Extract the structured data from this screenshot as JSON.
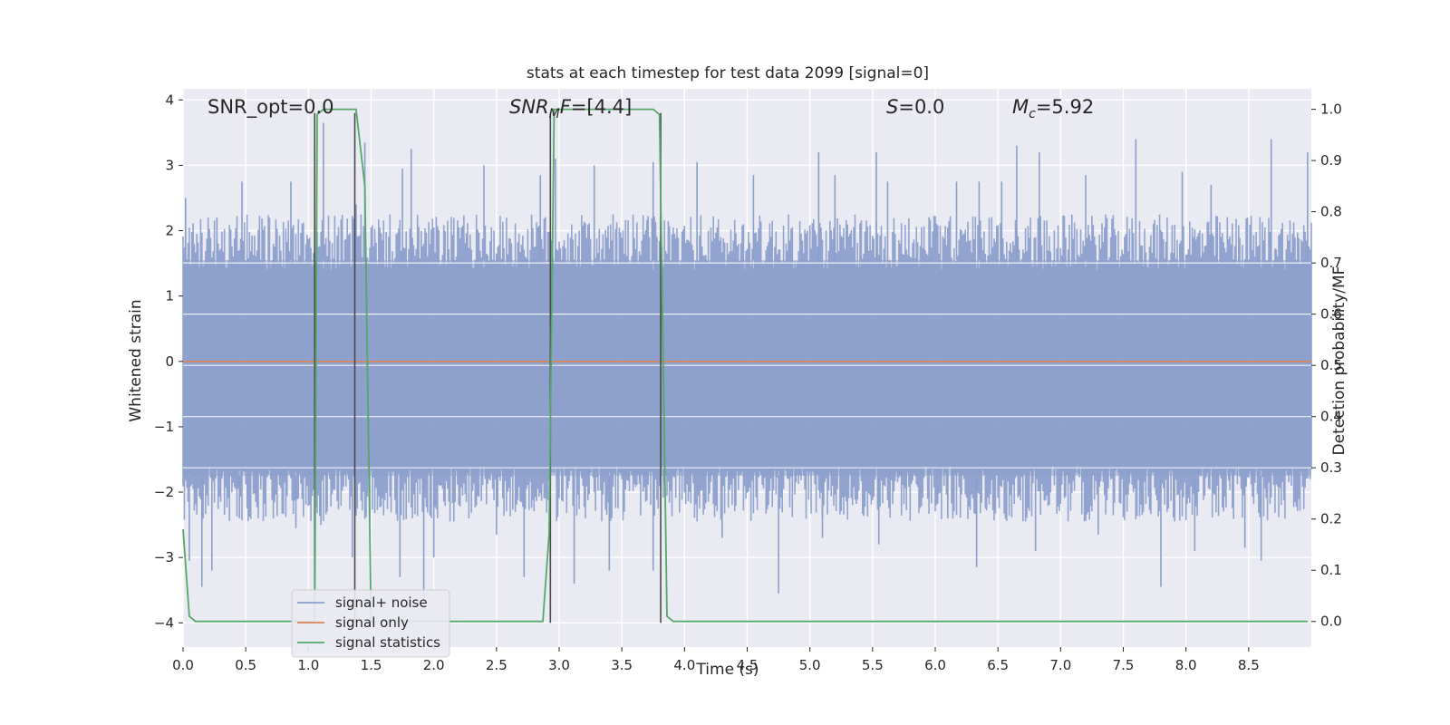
{
  "chart_data": {
    "type": "line",
    "title": "stats at each timestep for test data 2099 [signal=0]",
    "xlabel": "Time (s)",
    "ylabel_left": "Whitened strain",
    "ylabel_right": "Detection probability/MF",
    "xlim": [
      0.0,
      9.0
    ],
    "ylim_left": [
      -4.37,
      4.17
    ],
    "ylim_right": [
      -0.05,
      1.04
    ],
    "x_ticks": [
      "0.0",
      "0.5",
      "1.0",
      "1.5",
      "2.0",
      "2.5",
      "3.0",
      "3.5",
      "4.0",
      "4.5",
      "5.0",
      "5.5",
      "6.0",
      "6.5",
      "7.0",
      "7.5",
      "8.0",
      "8.5"
    ],
    "x_tick_values": [
      0.0,
      0.5,
      1.0,
      1.5,
      2.0,
      2.5,
      3.0,
      3.5,
      4.0,
      4.5,
      5.0,
      5.5,
      6.0,
      6.5,
      7.0,
      7.5,
      8.0,
      8.5
    ],
    "y_left_ticks": [
      "4",
      "3",
      "2",
      "1",
      "0",
      "−1",
      "−2",
      "−3",
      "−4"
    ],
    "y_left_tick_values": [
      4,
      3,
      2,
      1,
      0,
      -1,
      -2,
      -3,
      -4
    ],
    "y_right_ticks": [
      "1.0",
      "0.9",
      "0.8",
      "0.7",
      "0.6",
      "0.5",
      "0.4",
      "0.3",
      "0.2",
      "0.1",
      "0.0"
    ],
    "y_right_tick_values": [
      1.0,
      0.9,
      0.8,
      0.7,
      0.6,
      0.5,
      0.4,
      0.3,
      0.2,
      0.1,
      0.0
    ],
    "grid": true,
    "legend_position": "lower-left",
    "colors": {
      "background": "#eaeaf2",
      "noise": "#8c9fcb",
      "signal": "#dd8452",
      "stats": "#55a868",
      "marker": "#4a4a4a"
    },
    "series": [
      {
        "name": "signal+ noise",
        "axis": "left",
        "description_of_band": "dense noise band",
        "x_range": [
          0.0,
          9.0
        ],
        "typical_range": [
          -1.75,
          1.55
        ],
        "peaks_high": [
          [
            0.02,
            2.5
          ],
          [
            0.27,
            2.2
          ],
          [
            0.47,
            2.75
          ],
          [
            0.86,
            2.75
          ],
          [
            1.12,
            3.65
          ],
          [
            1.38,
            2.4
          ],
          [
            1.45,
            3.35
          ],
          [
            1.75,
            2.95
          ],
          [
            1.82,
            3.25
          ],
          [
            2.4,
            3.0
          ],
          [
            2.85,
            2.85
          ],
          [
            2.97,
            3.1
          ],
          [
            3.28,
            3.0
          ],
          [
            3.75,
            3.05
          ],
          [
            4.1,
            3.05
          ],
          [
            4.55,
            2.85
          ],
          [
            5.07,
            3.2
          ],
          [
            5.2,
            2.85
          ],
          [
            5.53,
            3.2
          ],
          [
            5.62,
            2.75
          ],
          [
            6.17,
            2.75
          ],
          [
            6.35,
            2.75
          ],
          [
            6.53,
            2.75
          ],
          [
            6.65,
            3.3
          ],
          [
            6.83,
            3.2
          ],
          [
            7.2,
            2.85
          ],
          [
            7.6,
            3.4
          ],
          [
            7.97,
            2.9
          ],
          [
            8.2,
            2.7
          ],
          [
            8.68,
            3.4
          ],
          [
            8.97,
            3.2
          ]
        ],
        "peaks_low": [
          [
            0.05,
            -3.05
          ],
          [
            0.15,
            -3.45
          ],
          [
            0.23,
            -3.2
          ],
          [
            0.45,
            -2.4
          ],
          [
            0.9,
            -2.55
          ],
          [
            1.1,
            -2.5
          ],
          [
            1.35,
            -3.0
          ],
          [
            1.73,
            -3.3
          ],
          [
            1.92,
            -3.8
          ],
          [
            2.0,
            -3.0
          ],
          [
            2.5,
            -2.65
          ],
          [
            2.72,
            -3.3
          ],
          [
            3.12,
            -3.4
          ],
          [
            3.4,
            -3.2
          ],
          [
            3.75,
            -3.2
          ],
          [
            4.3,
            -2.7
          ],
          [
            4.75,
            -3.55
          ],
          [
            5.1,
            -2.7
          ],
          [
            5.55,
            -2.8
          ],
          [
            6.1,
            -2.4
          ],
          [
            6.33,
            -3.15
          ],
          [
            6.8,
            -2.9
          ],
          [
            7.3,
            -2.65
          ],
          [
            7.8,
            -3.45
          ],
          [
            8.07,
            -2.9
          ],
          [
            8.47,
            -2.85
          ],
          [
            8.6,
            -3.05
          ]
        ]
      },
      {
        "name": "signal only",
        "axis": "left",
        "x": [
          0.0,
          9.0
        ],
        "y": [
          0.0,
          0.0
        ]
      },
      {
        "name": "signal statistics",
        "axis": "right",
        "x": [
          0.0,
          0.05,
          0.1,
          1.05,
          1.07,
          1.12,
          1.38,
          1.45,
          1.5,
          2.87,
          2.92,
          2.96,
          3.75,
          3.8,
          3.86,
          3.91,
          8.97
        ],
        "y": [
          0.18,
          0.01,
          0.0,
          0.0,
          0.99,
          1.0,
          1.0,
          0.85,
          0.0,
          0.0,
          0.17,
          1.0,
          1.0,
          0.99,
          0.01,
          0.0,
          0.0
        ]
      }
    ],
    "vertical_markers": [
      {
        "x": 1.05,
        "y_top": 3.8,
        "y_bottom": -4.0
      },
      {
        "x": 1.37,
        "y_top": 3.8,
        "y_bottom": -4.0
      },
      {
        "x": 2.93,
        "y_top": 3.8,
        "y_bottom": -4.0
      },
      {
        "x": 3.81,
        "y_top": 3.8,
        "y_bottom": -4.0
      }
    ],
    "annotations": [
      {
        "parts": [
          {
            "t": "SNR_opt=0.0",
            "style": "normal"
          }
        ]
      },
      {
        "parts": [
          {
            "t": "SNR",
            "style": "italic"
          },
          {
            "t": "M",
            "style": "italic-sub"
          },
          {
            "t": "F",
            "style": "italic"
          },
          {
            "t": "=[4.4]",
            "style": "normal"
          }
        ]
      },
      {
        "parts": [
          {
            "t": "S",
            "style": "italic"
          },
          {
            "t": "=0.0",
            "style": "normal"
          }
        ]
      },
      {
        "parts": [
          {
            "t": "M",
            "style": "italic"
          },
          {
            "t": "c",
            "style": "italic-sub"
          },
          {
            "t": "=5.92",
            "style": "normal"
          }
        ]
      }
    ],
    "legend": [
      "signal+ noise",
      "signal only",
      "signal statistics"
    ]
  }
}
